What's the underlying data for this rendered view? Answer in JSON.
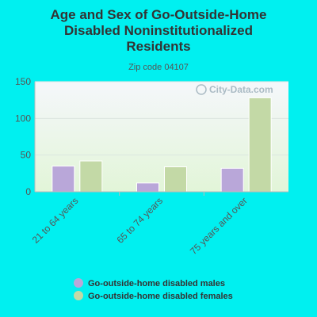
{
  "chart_data": {
    "type": "bar",
    "title": "Age and Sex of Go-Outside-Home Disabled Noninstitutionalized Residents",
    "title_lines": [
      "Age and Sex of Go-Outside-Home",
      "Disabled Noninstitutionalized",
      "Residents"
    ],
    "subtitle": "Zip code 04107",
    "categories": [
      "21 to 64 years",
      "65 to 74 years",
      "75 years and over"
    ],
    "series": [
      {
        "name": "Go-outside-home disabled males",
        "values": [
          35,
          12,
          32
        ],
        "color": "#b9a7d9"
      },
      {
        "name": "Go-outside-home disabled females",
        "values": [
          42,
          34,
          128
        ],
        "color": "#c3d9a6"
      }
    ],
    "ylim": [
      0,
      150
    ],
    "yticks": [
      0,
      50,
      100,
      150
    ],
    "grid": true,
    "legend_position": "bottom",
    "watermark": "City-Data.com"
  },
  "colors": {
    "background": "#00f0f0",
    "plot_top": "#f5f7fb",
    "plot_bottom": "#e2f5d8"
  }
}
